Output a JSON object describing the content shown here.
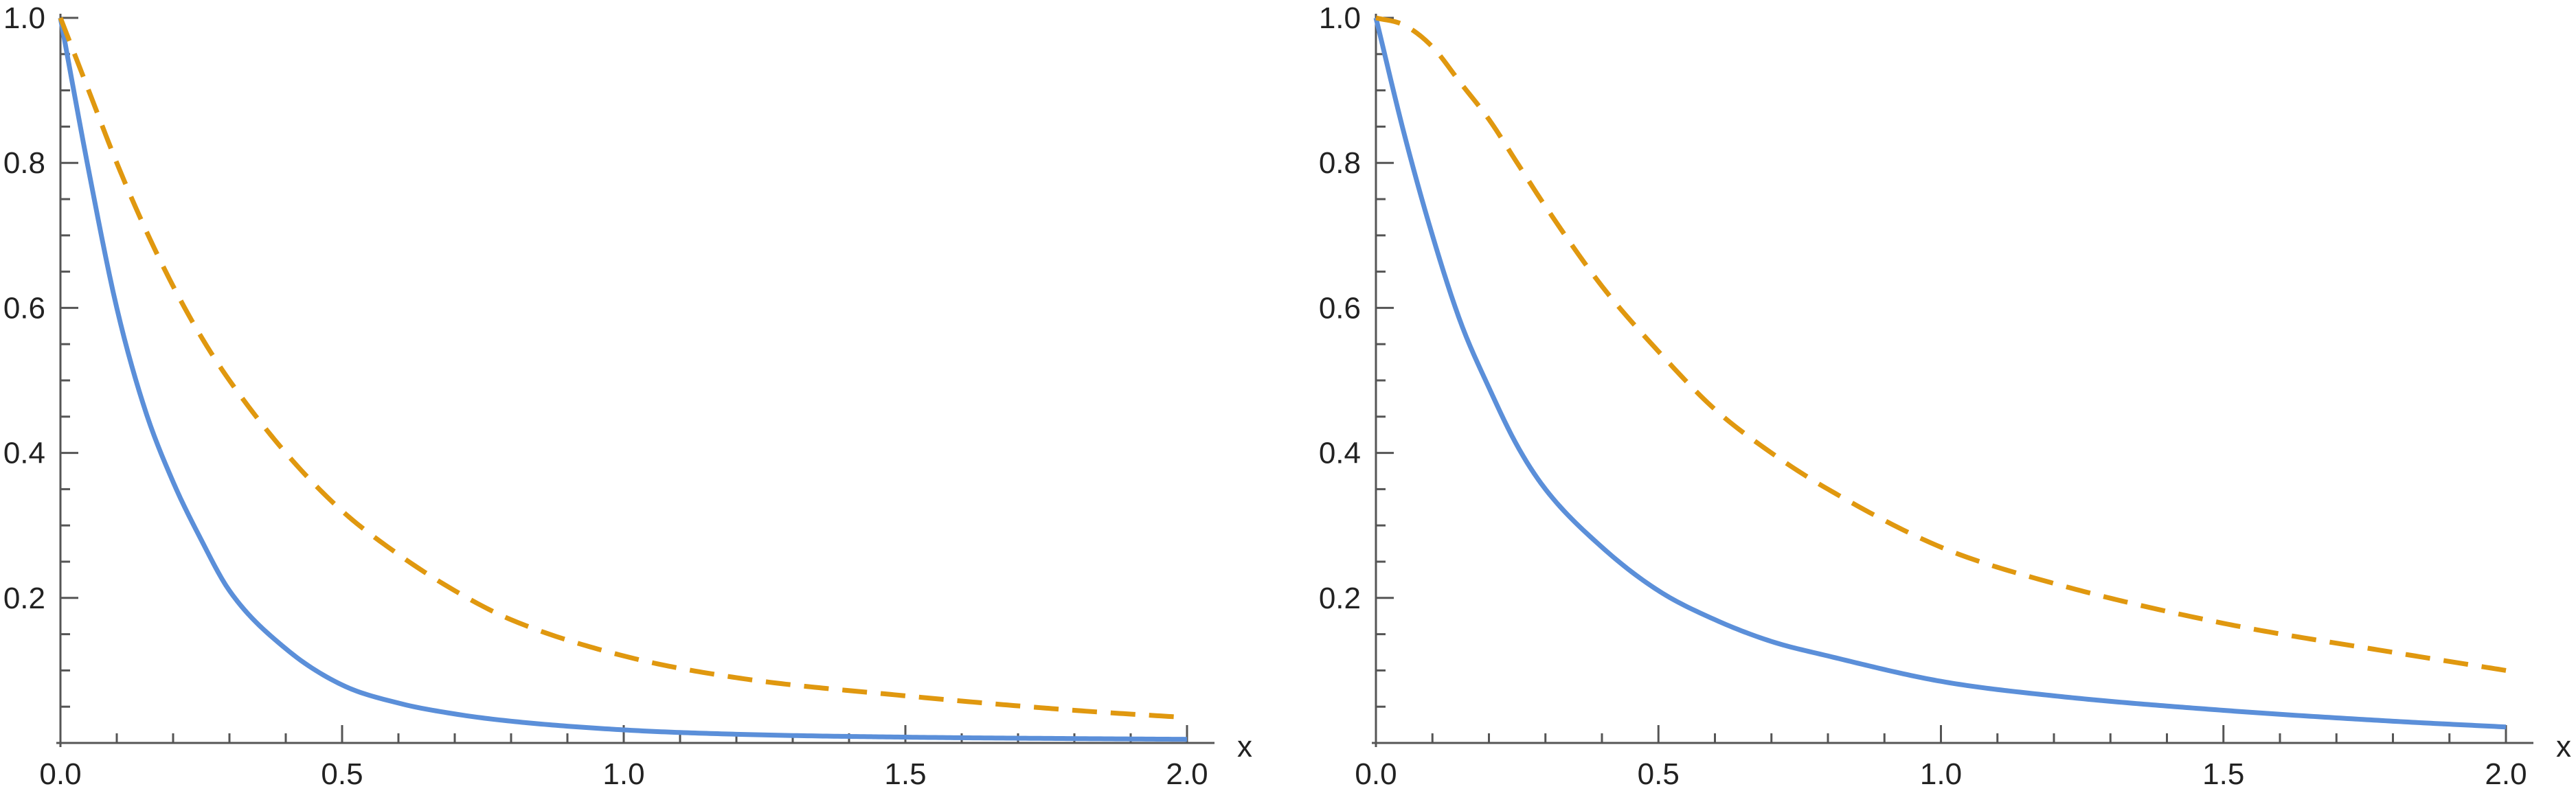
{
  "chart_data": [
    {
      "type": "line",
      "title": "",
      "xlabel": "x",
      "ylabel": "",
      "xlim": [
        0,
        2
      ],
      "ylim": [
        0,
        1
      ],
      "grid": false,
      "legend": "none",
      "x_ticks": [
        "0.0",
        "0.5",
        "1.0",
        "1.5",
        "2.0"
      ],
      "y_ticks": [
        "0.2",
        "0.4",
        "0.6",
        "0.8",
        "1.0"
      ],
      "x": [
        0,
        0.05,
        0.1,
        0.15,
        0.2,
        0.25,
        0.3,
        0.4,
        0.5,
        0.6,
        0.7,
        0.8,
        1.0,
        1.2,
        1.5,
        1.8,
        2.0
      ],
      "series": [
        {
          "color": "#5b8fd9",
          "style": "solid",
          "values": [
            1.0,
            0.79,
            0.6,
            0.46,
            0.36,
            0.28,
            0.21,
            0.13,
            0.08,
            0.055,
            0.04,
            0.03,
            0.018,
            0.012,
            0.008,
            0.006,
            0.005
          ]
        },
        {
          "color": "#e0980f",
          "style": "dashed",
          "values": [
            1.0,
            0.9,
            0.8,
            0.71,
            0.63,
            0.56,
            0.5,
            0.4,
            0.32,
            0.26,
            0.21,
            0.17,
            0.12,
            0.09,
            0.065,
            0.045,
            0.035
          ]
        }
      ]
    },
    {
      "type": "line",
      "title": "",
      "xlabel": "x",
      "ylabel": "",
      "xlim": [
        0,
        2
      ],
      "ylim": [
        0,
        1
      ],
      "grid": false,
      "legend": "none",
      "x_ticks": [
        "0.0",
        "0.5",
        "1.0",
        "1.5",
        "2.0"
      ],
      "y_ticks": [
        "0.2",
        "0.4",
        "0.6",
        "0.8",
        "1.0"
      ],
      "x": [
        0,
        0.05,
        0.1,
        0.15,
        0.2,
        0.25,
        0.3,
        0.4,
        0.5,
        0.6,
        0.7,
        0.8,
        1.0,
        1.2,
        1.5,
        1.8,
        2.0
      ],
      "series": [
        {
          "color": "#5b8fd9",
          "style": "solid",
          "values": [
            1.0,
            0.84,
            0.7,
            0.58,
            0.49,
            0.41,
            0.35,
            0.27,
            0.21,
            0.17,
            0.14,
            0.12,
            0.085,
            0.065,
            0.045,
            0.03,
            0.022
          ]
        },
        {
          "color": "#e0980f",
          "style": "dashed",
          "values": [
            1.0,
            0.99,
            0.96,
            0.91,
            0.86,
            0.8,
            0.74,
            0.63,
            0.54,
            0.46,
            0.4,
            0.35,
            0.27,
            0.22,
            0.165,
            0.125,
            0.1
          ]
        }
      ]
    }
  ]
}
